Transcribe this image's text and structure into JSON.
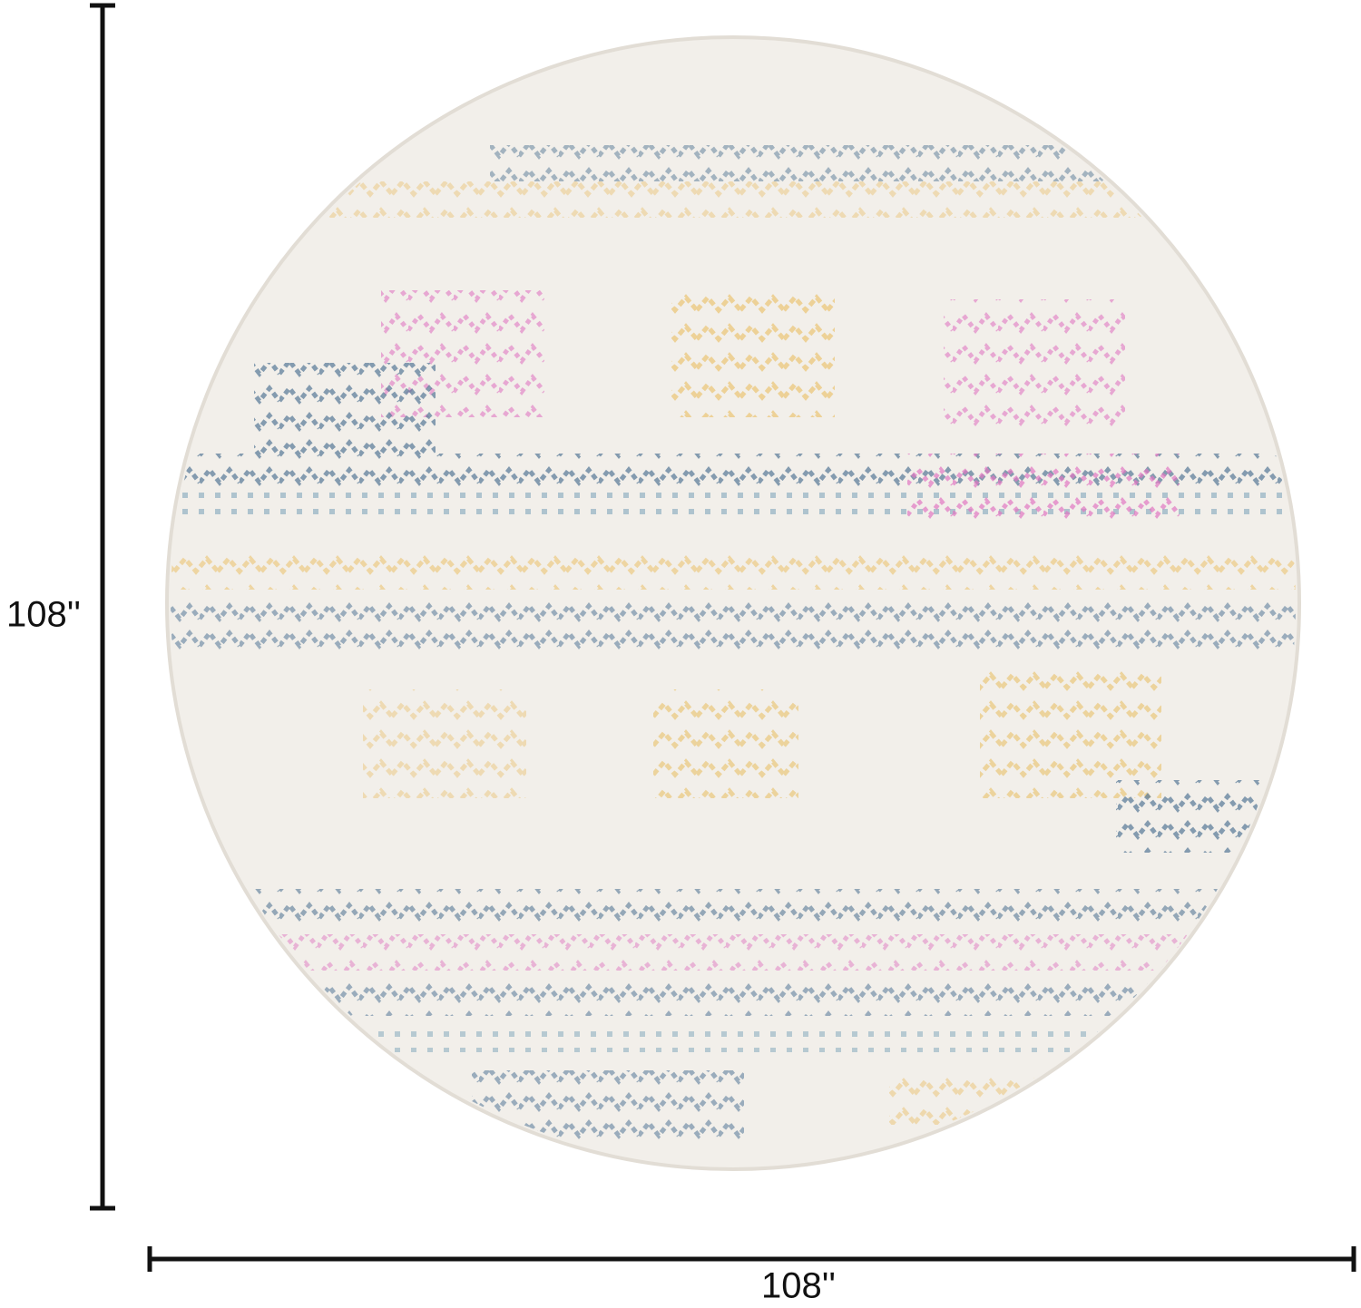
{
  "dimensions": {
    "height": {
      "label": "108''"
    },
    "width": {
      "label": "108''"
    }
  }
}
